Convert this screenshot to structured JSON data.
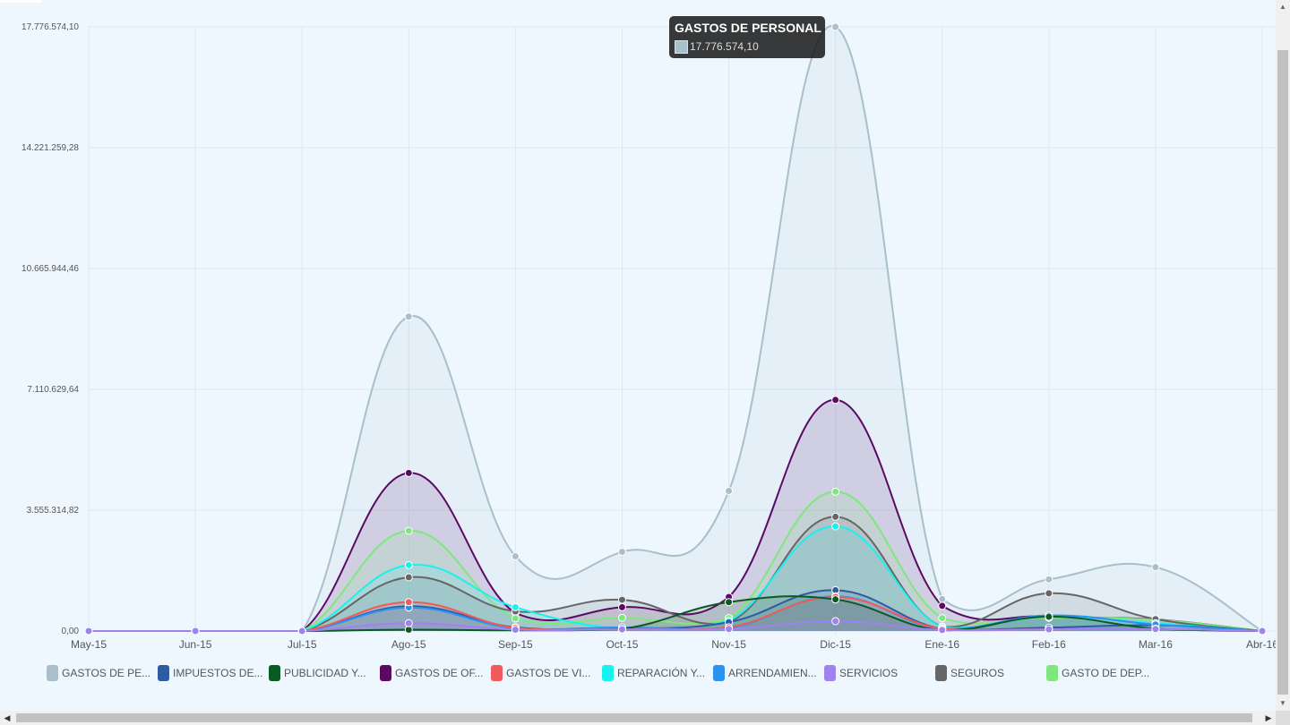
{
  "chart_data": {
    "type": "area",
    "categories": [
      "May-15",
      "Jun-15",
      "Jul-15",
      "Ago-15",
      "Sep-15",
      "Oct-15",
      "Nov-15",
      "Dic-15",
      "Ene-16",
      "Feb-16",
      "Mar-16",
      "Abr-16"
    ],
    "y_tick_labels": [
      "0,00",
      "3.555.314,82",
      "7.110.629,64",
      "10.665.944,46",
      "14.221.259,28",
      "17.776.574,10"
    ],
    "ylim": [
      0,
      17776574.1
    ],
    "grid": true,
    "legend_position": "bottom",
    "series": [
      {
        "name": "GASTOS DE PE...",
        "color": "#a9bfcb",
        "values": [
          0,
          0,
          0,
          9250000,
          2200000,
          2330000,
          4120000,
          17776574.1,
          940000,
          1520000,
          1880000,
          0
        ]
      },
      {
        "name": "GASTOS DE OF...",
        "color": "#5b0a63",
        "values": [
          0,
          0,
          0,
          4650000,
          530000,
          700000,
          1000000,
          6800000,
          740000,
          430000,
          340000,
          0
        ]
      },
      {
        "name": "GASTO DE DEP...",
        "color": "#7ee87e",
        "values": [
          0,
          0,
          0,
          2950000,
          370000,
          390000,
          380000,
          4100000,
          380000,
          390000,
          330000,
          0
        ]
      },
      {
        "name": "SEGUROS",
        "color": "#666666",
        "values": [
          0,
          0,
          0,
          1580000,
          580000,
          920000,
          260000,
          3360000,
          130000,
          1110000,
          350000,
          0
        ]
      },
      {
        "name": "REPARACIÓN Y...",
        "color": "#19f0f0",
        "values": [
          0,
          0,
          0,
          1940000,
          700000,
          80000,
          300000,
          3080000,
          110000,
          420000,
          230000,
          0
        ]
      },
      {
        "name": "IMPUESTOS DE...",
        "color": "#2f5aa4",
        "values": [
          0,
          0,
          0,
          730000,
          110000,
          70000,
          260000,
          1200000,
          60000,
          100000,
          170000,
          0
        ]
      },
      {
        "name": "ARRENDAMIEN...",
        "color": "#2b93ef",
        "values": [
          0,
          0,
          0,
          690000,
          80000,
          110000,
          90000,
          1020000,
          70000,
          460000,
          190000,
          0
        ]
      },
      {
        "name": "GASTOS DE VI...",
        "color": "#f05a5a",
        "values": [
          0,
          0,
          0,
          850000,
          90000,
          50000,
          110000,
          1000000,
          60000,
          50000,
          60000,
          0
        ]
      },
      {
        "name": "PUBLICIDAD Y...",
        "color": "#0a5a23",
        "values": [
          0,
          0,
          0,
          40000,
          20000,
          60000,
          850000,
          930000,
          20000,
          420000,
          70000,
          0
        ]
      },
      {
        "name": "SERVICIOS",
        "color": "#9f82ef",
        "values": [
          0,
          0,
          0,
          230000,
          40000,
          50000,
          60000,
          290000,
          30000,
          50000,
          60000,
          0
        ]
      }
    ],
    "legend_order": [
      "GASTOS DE PE...",
      "IMPUESTOS DE...",
      "PUBLICIDAD Y...",
      "GASTOS DE OF...",
      "GASTOS DE VI...",
      "REPARACIÓN Y...",
      "ARRENDAMIEN...",
      "SERVICIOS",
      "SEGUROS",
      "GASTO DE DEP..."
    ]
  },
  "tooltip": {
    "title": "GASTOS DE PERSONAL",
    "value": "17.776.574,10",
    "color": "#a9bfcb"
  },
  "scrollbar": {
    "left_arrow": "◀",
    "right_arrow": "▶",
    "up_arrow": "▲",
    "down_arrow": "▼"
  }
}
